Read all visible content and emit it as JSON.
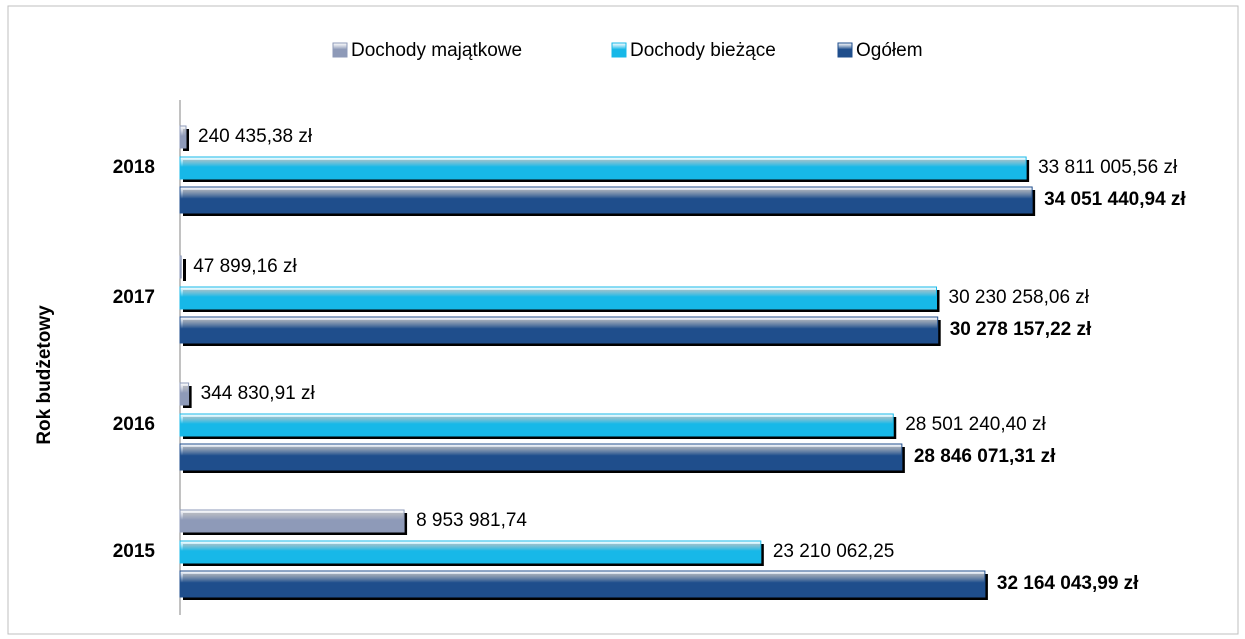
{
  "chart_data": {
    "type": "bar",
    "orientation": "horizontal",
    "y_axis_label": "Rok budżetowy",
    "categories": [
      "2015",
      "2016",
      "2017",
      "2018"
    ],
    "xlim": [
      0,
      40000000
    ],
    "legend": "top",
    "series": [
      {
        "name": "Dochody majątkowe",
        "color": "#8e9ab8",
        "values": [
          8953981.74,
          344830.91,
          47899.16,
          240435.38
        ],
        "value_labels": [
          "8 953 981,74",
          "344 830,91 zł",
          "47 899,16 zł",
          "240 435,38 zł"
        ]
      },
      {
        "name": "Dochody bieżące",
        "color": "#17b8e8",
        "values": [
          23210062.25,
          28501240.4,
          30230258.06,
          33811005.56
        ],
        "value_labels": [
          "23 210 062,25",
          "28 501 240,40 zł",
          "30 230 258,06 zł",
          "33 811 005,56 zł"
        ]
      },
      {
        "name": "Ogółem",
        "color": "#1f4e8c",
        "values": [
          32164043.99,
          28846071.31,
          30278157.22,
          34051440.94
        ],
        "value_labels": [
          "32 164 043,99 zł",
          "28 846 071,31 zł",
          "30 278 157,22 zł",
          "34 051 440,94 zł"
        ]
      }
    ]
  }
}
